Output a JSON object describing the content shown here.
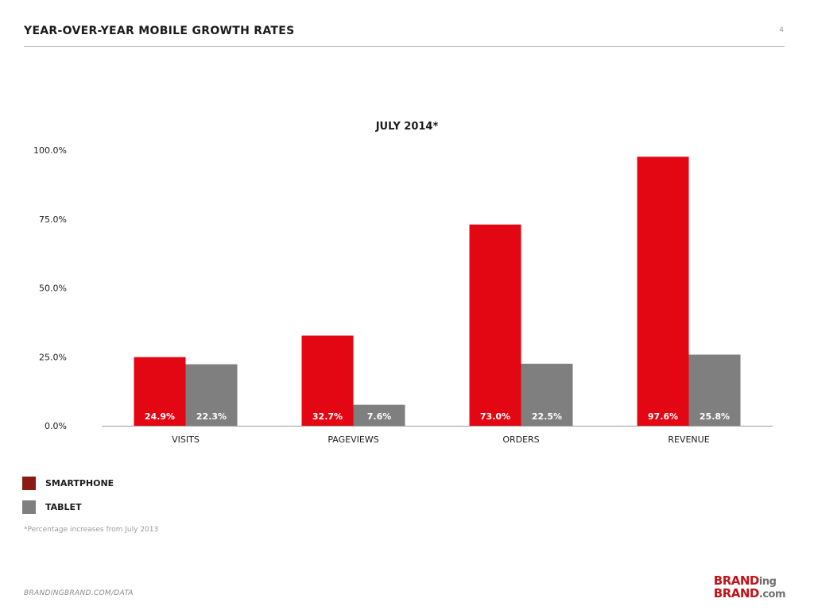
{
  "header": {
    "title": "YEAR-OVER-YEAR MOBILE GROWTH RATES",
    "page_number": "4"
  },
  "colors": {
    "smartphone": "#e30613",
    "tablet": "#7f7f7f",
    "smartphone_legend": "#8b1a12",
    "axis": "#9a9a9a",
    "label_on_bar": "#ffffff"
  },
  "chart_data": {
    "type": "bar",
    "title": "JULY 2014*",
    "categories": [
      "VISITS",
      "PAGEVIEWS",
      "ORDERS",
      "REVENUE"
    ],
    "series": [
      {
        "name": "SMARTPHONE",
        "values": [
          24.9,
          32.7,
          73.0,
          97.6
        ],
        "labels": [
          "24.9%",
          "32.7%",
          "73.0%",
          "97.6%"
        ]
      },
      {
        "name": "TABLET",
        "values": [
          22.3,
          7.6,
          22.5,
          25.8
        ],
        "labels": [
          "22.3%",
          "7.6%",
          "22.5%",
          "25.8%"
        ]
      }
    ],
    "yticks": [
      "0.0%",
      "25.0%",
      "50.0%",
      "75.0%",
      "100.0%"
    ],
    "ylim": [
      0,
      100
    ],
    "grid": false,
    "legend": "bottom-left"
  },
  "legend": {
    "items": [
      {
        "label": "SMARTPHONE"
      },
      {
        "label": "TABLET"
      }
    ]
  },
  "footnote": "*Percentage increases from July 2013",
  "footer": {
    "source": "BRANDINGBRAND.COM/DATA"
  },
  "logo": {
    "line1_main": "BRAND",
    "line1_sub": "ing",
    "line2_main": "BRAND",
    "line2_sub": ".com"
  }
}
